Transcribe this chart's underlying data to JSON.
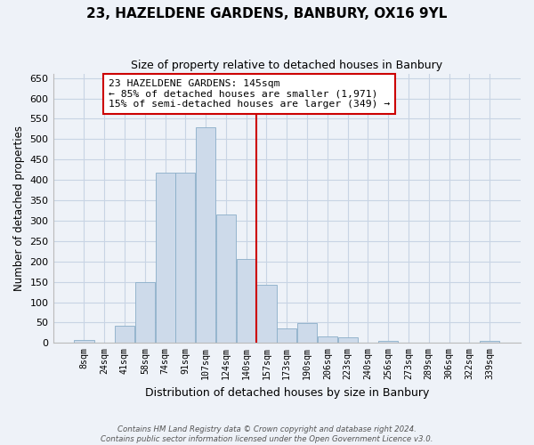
{
  "title": "23, HAZELDENE GARDENS, BANBURY, OX16 9YL",
  "subtitle": "Size of property relative to detached houses in Banbury",
  "xlabel": "Distribution of detached houses by size in Banbury",
  "ylabel": "Number of detached properties",
  "bar_labels": [
    "8sqm",
    "24sqm",
    "41sqm",
    "58sqm",
    "74sqm",
    "91sqm",
    "107sqm",
    "124sqm",
    "140sqm",
    "157sqm",
    "173sqm",
    "190sqm",
    "206sqm",
    "223sqm",
    "240sqm",
    "256sqm",
    "273sqm",
    "289sqm",
    "306sqm",
    "322sqm",
    "339sqm"
  ],
  "bar_values": [
    8,
    0,
    43,
    150,
    417,
    417,
    530,
    315,
    205,
    143,
    35,
    49,
    16,
    14,
    0,
    5,
    0,
    0,
    0,
    0,
    5
  ],
  "bar_color": "#cddaea",
  "bar_edge_color": "#8aaec8",
  "vline_color": "#cc0000",
  "vline_x": 8.5,
  "ylim": [
    0,
    660
  ],
  "yticks": [
    0,
    50,
    100,
    150,
    200,
    250,
    300,
    350,
    400,
    450,
    500,
    550,
    600,
    650
  ],
  "annotation_title": "23 HAZELDENE GARDENS: 145sqm",
  "annotation_line1": "← 85% of detached houses are smaller (1,971)",
  "annotation_line2": "15% of semi-detached houses are larger (349) →",
  "annotation_box_color": "#ffffff",
  "annotation_box_edge": "#cc0000",
  "footer_line1": "Contains HM Land Registry data © Crown copyright and database right 2024.",
  "footer_line2": "Contains public sector information licensed under the Open Government Licence v3.0.",
  "grid_color": "#c8d4e4",
  "background_color": "#eef2f8"
}
